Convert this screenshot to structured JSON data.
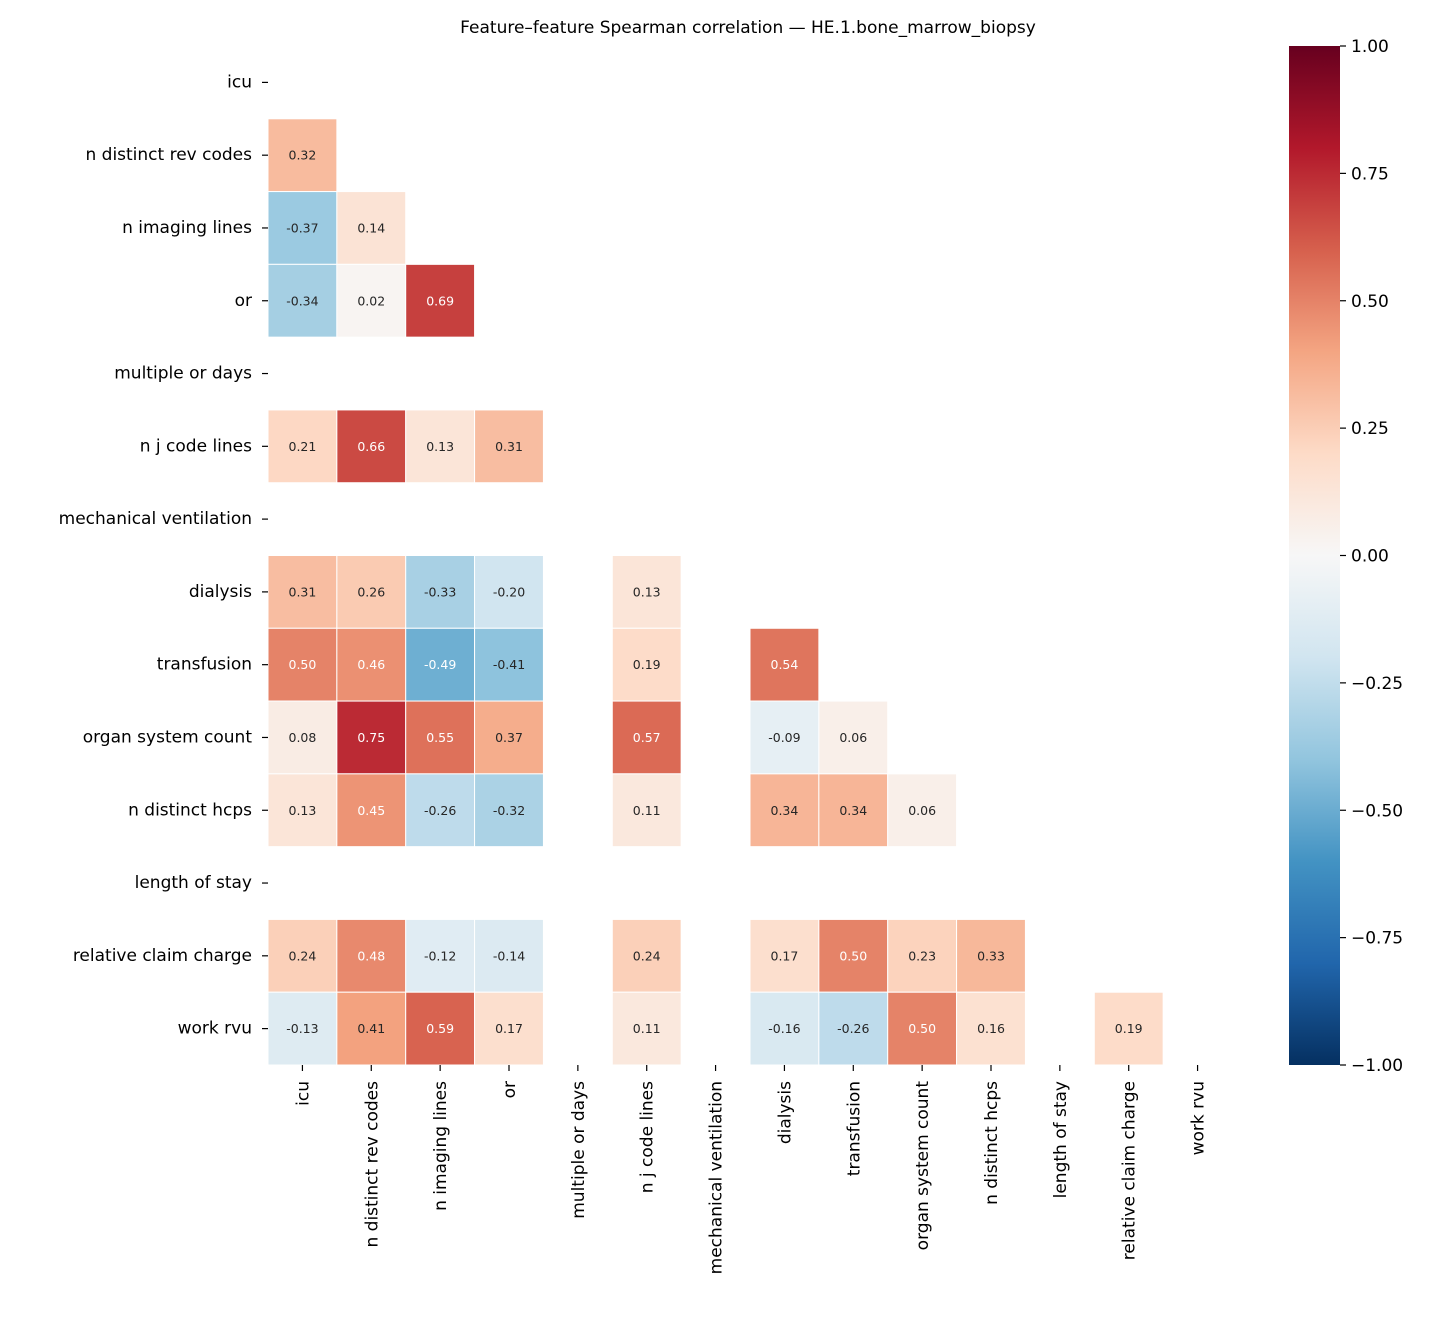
{
  "chart_data": {
    "type": "heatmap",
    "title": "Feature–feature Spearman correlation — HE.1.bone_marrow_biopsy",
    "labels": [
      "icu",
      "n distinct rev codes",
      "n imaging lines",
      "or",
      "multiple or days",
      "n j code lines",
      "mechanical ventilation",
      "dialysis",
      "transfusion",
      "organ system count",
      "n distinct hcps",
      "length of stay",
      "relative claim charge",
      "work rvu"
    ],
    "mask": "upper triangle and diagonal; rows/columns with undefined correlation left blank",
    "matrix": [
      [
        null,
        null,
        null,
        null,
        null,
        null,
        null,
        null,
        null,
        null,
        null,
        null,
        null,
        null
      ],
      [
        0.32,
        null,
        null,
        null,
        null,
        null,
        null,
        null,
        null,
        null,
        null,
        null,
        null,
        null
      ],
      [
        -0.37,
        0.14,
        null,
        null,
        null,
        null,
        null,
        null,
        null,
        null,
        null,
        null,
        null,
        null
      ],
      [
        -0.34,
        0.02,
        0.69,
        null,
        null,
        null,
        null,
        null,
        null,
        null,
        null,
        null,
        null,
        null
      ],
      [
        null,
        null,
        null,
        null,
        null,
        null,
        null,
        null,
        null,
        null,
        null,
        null,
        null,
        null
      ],
      [
        0.21,
        0.66,
        0.13,
        0.31,
        null,
        null,
        null,
        null,
        null,
        null,
        null,
        null,
        null,
        null
      ],
      [
        null,
        null,
        null,
        null,
        null,
        null,
        null,
        null,
        null,
        null,
        null,
        null,
        null,
        null
      ],
      [
        0.31,
        0.26,
        -0.33,
        -0.2,
        null,
        0.13,
        null,
        null,
        null,
        null,
        null,
        null,
        null,
        null
      ],
      [
        0.5,
        0.46,
        -0.49,
        -0.41,
        null,
        0.19,
        null,
        0.54,
        null,
        null,
        null,
        null,
        null,
        null
      ],
      [
        0.08,
        0.75,
        0.55,
        0.37,
        null,
        0.57,
        null,
        -0.09,
        0.06,
        null,
        null,
        null,
        null,
        null
      ],
      [
        0.13,
        0.45,
        -0.26,
        -0.32,
        null,
        0.11,
        null,
        0.34,
        0.34,
        0.06,
        null,
        null,
        null,
        null
      ],
      [
        null,
        null,
        null,
        null,
        null,
        null,
        null,
        null,
        null,
        null,
        null,
        null,
        null,
        null
      ],
      [
        0.24,
        0.48,
        -0.12,
        -0.14,
        null,
        0.24,
        null,
        0.17,
        0.5,
        0.23,
        0.33,
        null,
        null,
        null
      ],
      [
        -0.13,
        0.41,
        0.59,
        0.17,
        null,
        0.11,
        null,
        -0.16,
        -0.26,
        0.5,
        0.16,
        null,
        0.19,
        null
      ]
    ],
    "value_format": "2 decimals",
    "colormap": "RdBu_r",
    "colormap_stops": [
      "#053061",
      "#2166ac",
      "#4393c3",
      "#92c5de",
      "#d1e5f0",
      "#f7f7f7",
      "#fddbc7",
      "#f4a582",
      "#d6604d",
      "#b2182b",
      "#67001f"
    ],
    "vmin": -1,
    "vmax": 1,
    "colorbar_ticks": [
      1.0,
      0.75,
      0.5,
      0.25,
      0.0,
      -0.25,
      -0.5,
      -0.75,
      -1.0
    ],
    "colorbar_tick_labels": [
      "1.00",
      "0.75",
      "0.50",
      "0.25",
      "0.00",
      "−0.25",
      "−0.50",
      "−0.75",
      "−1.00"
    ],
    "colorbar_placement": "right",
    "grid": false
  }
}
